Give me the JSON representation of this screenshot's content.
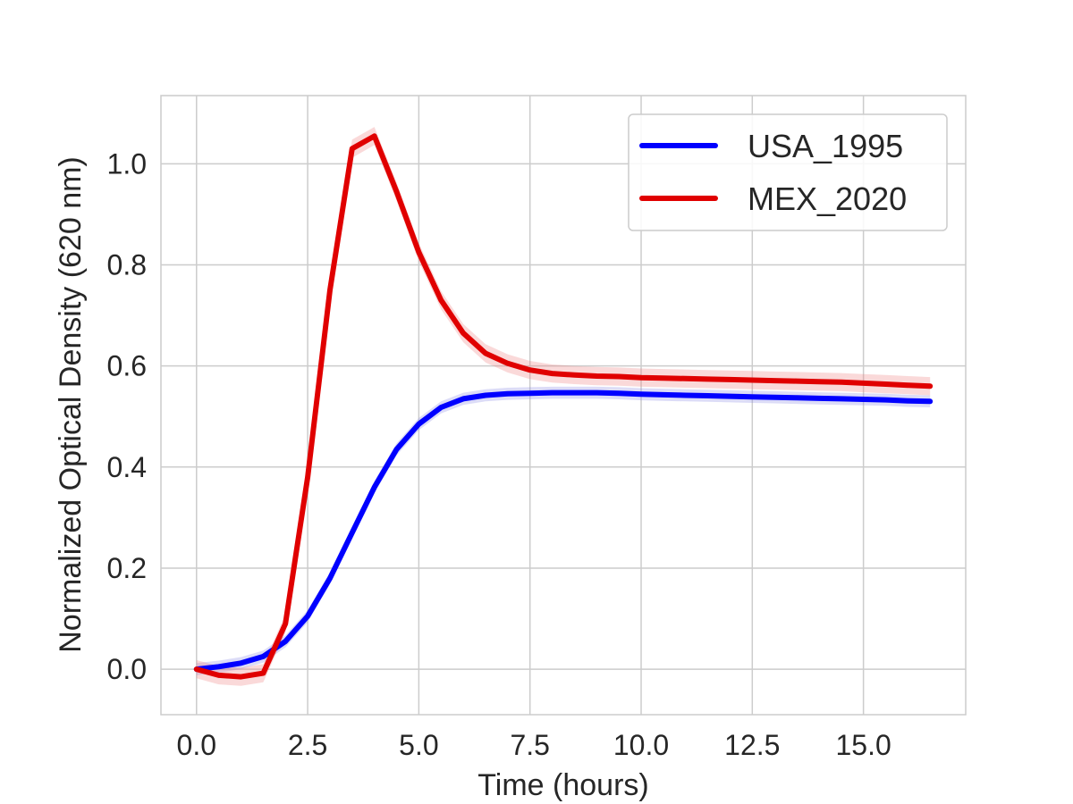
{
  "chart_data": {
    "type": "line",
    "title": "",
    "xlabel": "Time (hours)",
    "ylabel": "Normalized Optical Density (620 nm)",
    "xlim": [
      -0.8,
      17.3
    ],
    "ylim": [
      -0.09,
      1.135
    ],
    "xticks": [
      "0.0",
      "2.5",
      "5.0",
      "7.5",
      "10.0",
      "12.5",
      "15.0"
    ],
    "yticks": [
      "0.0",
      "0.2",
      "0.4",
      "0.6",
      "0.8",
      "1.0"
    ],
    "grid": true,
    "legend_position": "top-right",
    "x": [
      0,
      0.5,
      1,
      1.5,
      2,
      2.5,
      3,
      3.5,
      4,
      4.5,
      5,
      5.5,
      6,
      6.5,
      7,
      7.5,
      8,
      8.5,
      9,
      9.5,
      10,
      10.5,
      11,
      11.5,
      12,
      12.5,
      13,
      13.5,
      14,
      14.5,
      15,
      15.5,
      16,
      16.5
    ],
    "series": [
      {
        "name": "USA_1995",
        "color": "#0000ff",
        "band_color": "#8a8ae6",
        "values": [
          0.0,
          0.005,
          0.012,
          0.025,
          0.055,
          0.105,
          0.18,
          0.27,
          0.36,
          0.435,
          0.485,
          0.518,
          0.535,
          0.542,
          0.545,
          0.546,
          0.547,
          0.547,
          0.547,
          0.546,
          0.544,
          0.543,
          0.542,
          0.541,
          0.54,
          0.539,
          0.538,
          0.537,
          0.536,
          0.535,
          0.534,
          0.533,
          0.531,
          0.53
        ]
      },
      {
        "name": "MEX_2020",
        "color": "#e00000",
        "band_color": "#f08080",
        "values": [
          0.0,
          -0.012,
          -0.015,
          -0.008,
          0.09,
          0.38,
          0.75,
          1.03,
          1.055,
          0.945,
          0.825,
          0.73,
          0.665,
          0.625,
          0.605,
          0.592,
          0.585,
          0.582,
          0.58,
          0.579,
          0.577,
          0.576,
          0.575,
          0.574,
          0.573,
          0.572,
          0.571,
          0.57,
          0.569,
          0.568,
          0.566,
          0.564,
          0.562,
          0.56
        ]
      }
    ]
  }
}
